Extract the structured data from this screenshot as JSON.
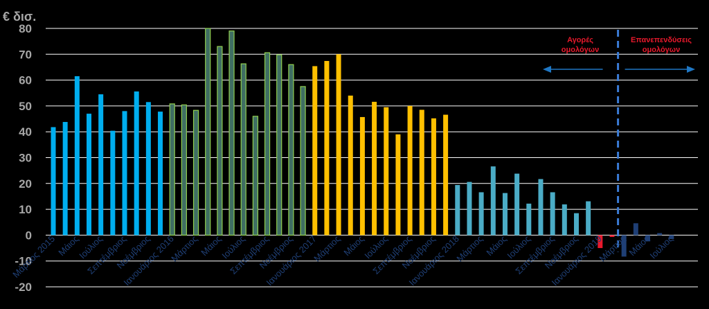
{
  "chart_data": {
    "type": "bar",
    "ylabel": "€ δισ.",
    "ylim": [
      -20,
      80
    ],
    "yticks": [
      -20,
      -10,
      0,
      10,
      20,
      30,
      40,
      50,
      60,
      70,
      80
    ],
    "grid": true,
    "x_tick_labels": [
      {
        "index": 0,
        "text": "Μάρτιος 2015"
      },
      {
        "index": 2,
        "text": "Μάιος"
      },
      {
        "index": 4,
        "text": "Ιούλιος"
      },
      {
        "index": 6,
        "text": "Σεπτέμβριος"
      },
      {
        "index": 8,
        "text": "Νοέμβριος"
      },
      {
        "index": 10,
        "text": "Ιανουάριος 2016"
      },
      {
        "index": 12,
        "text": "Μάρτιος"
      },
      {
        "index": 14,
        "text": "Μάιος"
      },
      {
        "index": 16,
        "text": "Ιούλιος"
      },
      {
        "index": 18,
        "text": "Σεπτέμβριος"
      },
      {
        "index": 20,
        "text": "Νοέμβριος"
      },
      {
        "index": 22,
        "text": "Ιανουάριος 2017"
      },
      {
        "index": 24,
        "text": "Μάρτιος"
      },
      {
        "index": 26,
        "text": "Μάιος"
      },
      {
        "index": 28,
        "text": "Ιούλιος"
      },
      {
        "index": 30,
        "text": "Σεπτέμβριος"
      },
      {
        "index": 32,
        "text": "Νοέμβριος"
      },
      {
        "index": 34,
        "text": "Ιανουάριος 2018"
      },
      {
        "index": 36,
        "text": "Μάρτιος"
      },
      {
        "index": 38,
        "text": "Μάιος"
      },
      {
        "index": 40,
        "text": "Ιούλιος"
      },
      {
        "index": 42,
        "text": "Σεπτέμβριος"
      },
      {
        "index": 44,
        "text": "Νοέμβριος"
      },
      {
        "index": 46,
        "text": "Ιανουάριος 2019"
      },
      {
        "index": 48,
        "text": "Μάρτιος"
      },
      {
        "index": 50,
        "text": "Μάιος"
      },
      {
        "index": 52,
        "text": "Ιούλιος"
      }
    ],
    "values": [
      41.8,
      43.8,
      61.5,
      47.0,
      54.5,
      40.4,
      48.0,
      55.6,
      51.5,
      47.8,
      50.8,
      50.4,
      48.3,
      80.0,
      73.0,
      79.0,
      66.3,
      46.0,
      70.6,
      69.8,
      66.0,
      57.5,
      65.4,
      67.4,
      70.0,
      54.0,
      45.7,
      51.6,
      49.5,
      39.0,
      50.0,
      48.5,
      45.2,
      46.6,
      19.4,
      20.6,
      16.6,
      26.6,
      16.3,
      23.8,
      12.2,
      21.7,
      16.6,
      11.9,
      8.5,
      13.1,
      -5.0,
      -0.7,
      -8.3,
      4.6,
      -2.4,
      0.8,
      -1.5
    ],
    "bar_colors": [
      "#00aeef",
      "#00aeef",
      "#00aeef",
      "#00aeef",
      "#00aeef",
      "#00aeef",
      "#00aeef",
      "#00aeef",
      "#00aeef",
      "#00aeef",
      "#3f6e63",
      "#3f6e63",
      "#3f6e63",
      "#3f6e63",
      "#3f6e63",
      "#3f6e63",
      "#3f6e63",
      "#3f6e63",
      "#3f6e63",
      "#3f6e63",
      "#3f6e63",
      "#3f6e63",
      "#ffc000",
      "#ffc000",
      "#ffc000",
      "#ffc000",
      "#ffc000",
      "#ffc000",
      "#ffc000",
      "#ffc000",
      "#ffc000",
      "#ffc000",
      "#ffc000",
      "#ffc000",
      "#4bacc6",
      "#4bacc6",
      "#4bacc6",
      "#4bacc6",
      "#4bacc6",
      "#4bacc6",
      "#4bacc6",
      "#4bacc6",
      "#4bacc6",
      "#4bacc6",
      "#4bacc6",
      "#4bacc6",
      "#e8192c",
      "#e8192c",
      "#1f3f75",
      "#1f3f75",
      "#1f3f75",
      "#1f3f75",
      "#1f3f75"
    ],
    "bar_outline_color": "#92d050",
    "outlined_bar_range": [
      10,
      21
    ],
    "annotations": {
      "left_label": "Αγορές\nομολόγων",
      "right_label": "Επανεπενδύσεις\nομολόγων",
      "divider_after_index": 47
    }
  },
  "colors": {
    "background": "#000000",
    "grid": "#ffffff",
    "arrow": "#1f77c4",
    "divider": "#3a7bd5",
    "annotation_text": "#e8192c"
  }
}
